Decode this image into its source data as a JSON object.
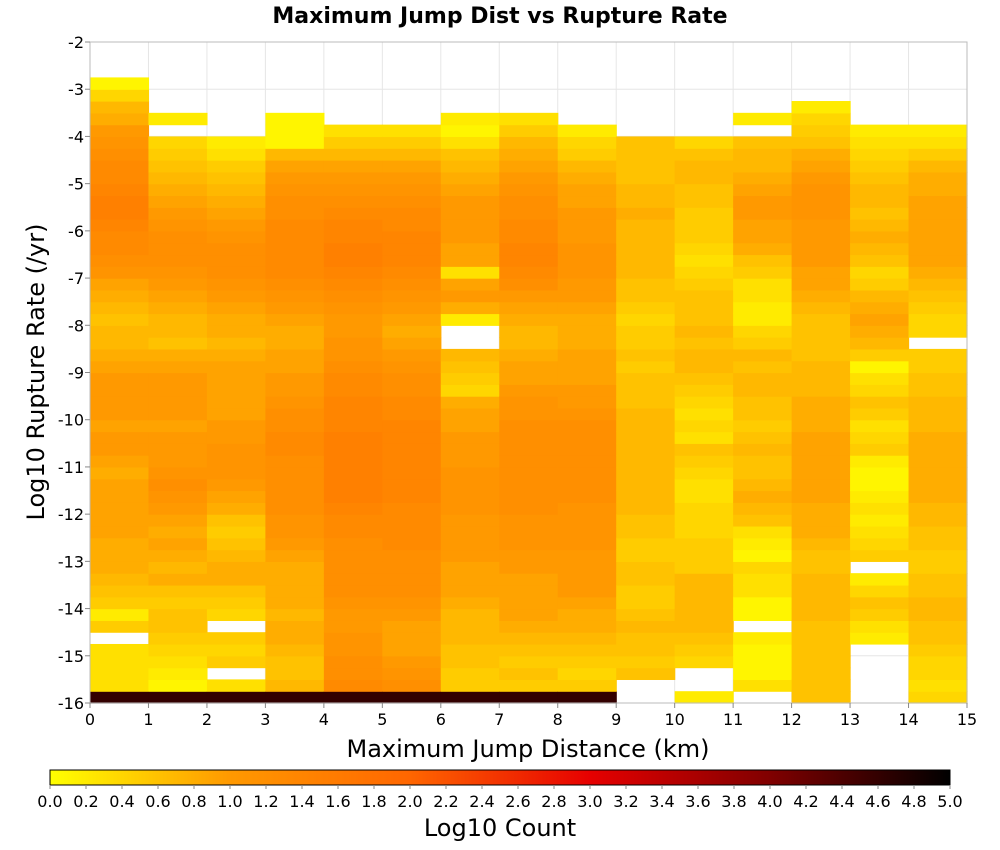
{
  "chart_data": {
    "type": "heatmap",
    "title": "Maximum Jump Dist vs Rupture Rate",
    "xlabel": "Maximum Jump Distance (km)",
    "ylabel": "Log10 Rupture Rate (/yr)",
    "colorbar_label": "Log10 Count",
    "xlim": [
      0,
      15
    ],
    "ylim": [
      -16,
      -2
    ],
    "x_ticks": [
      "0",
      "1",
      "2",
      "3",
      "4",
      "5",
      "6",
      "7",
      "8",
      "9",
      "10",
      "11",
      "12",
      "13",
      "14",
      "15"
    ],
    "y_ticks": [
      "-2",
      "-3",
      "-4",
      "-5",
      "-6",
      "-7",
      "-8",
      "-9",
      "-10",
      "-11",
      "-12",
      "-13",
      "-14",
      "-15",
      "-16"
    ],
    "colorbar_ticks": [
      "0.0",
      "0.2",
      "0.4",
      "0.6",
      "0.8",
      "1.0",
      "1.2",
      "1.4",
      "1.6",
      "1.8",
      "2.0",
      "2.2",
      "2.4",
      "2.6",
      "2.8",
      "3.0",
      "3.2",
      "3.4",
      "3.6",
      "3.8",
      "4.0",
      "4.2",
      "4.4",
      "4.6",
      "4.8",
      "5.0"
    ],
    "color_range": [
      0,
      5
    ],
    "colorscale": [
      "#ffff00",
      "#ff9900",
      "#ff6600",
      "#e60000",
      "#800000",
      "#000000"
    ],
    "x_bin_width": 1,
    "y_bin_height": 0.25,
    "x_bins": [
      0,
      1,
      2,
      3,
      4,
      5,
      6,
      7,
      8,
      9,
      10,
      11,
      12,
      13,
      14
    ],
    "y_bin_bottoms": [
      -16,
      -15.75,
      -15.5,
      -15.25,
      -15,
      -14.75,
      -14.5,
      -14.25,
      -14,
      -13.75,
      -13.5,
      -13.25,
      -13,
      -12.75,
      -12.5,
      -12.25,
      -12,
      -11.75,
      -11.5,
      -11.25,
      -11,
      -10.75,
      -10.5,
      -10.25,
      -10,
      -9.75,
      -9.5,
      -9.25,
      -9,
      -8.75,
      -8.5,
      -8.25,
      -8,
      -7.75,
      -7.5,
      -7.25,
      -7,
      -6.75,
      -6.5,
      -6.25,
      -6,
      -5.75,
      -5.5,
      -5.25,
      -5,
      -4.75,
      -4.5,
      -4.25,
      -4,
      -3.75,
      -3.5,
      -3.25,
      -3
    ],
    "z_note": "columns indexed by x bin, rows by y bin (bottom to top); null = empty",
    "z": [
      [
        4.6,
        0.3,
        0.3,
        0.3,
        0.3,
        null,
        0.5,
        0.2,
        0.5,
        0.6,
        0.7,
        0.8,
        0.8,
        0.8,
        0.9,
        0.9,
        0.9,
        0.9,
        0.9,
        0.8,
        0.9,
        1.0,
        1.0,
        0.9,
        1.0,
        1.0,
        1.0,
        1.0,
        0.9,
        0.8,
        0.7,
        0.7,
        0.6,
        0.7,
        0.8,
        0.9,
        1.1,
        1.2,
        1.3,
        1.3,
        1.4,
        1.5,
        1.5,
        1.4,
        1.3,
        1.3,
        1.2,
        1.1,
        1.0,
        0.8,
        0.7,
        0.4,
        0.1
      ],
      [
        4.6,
        0.1,
        0.2,
        0.3,
        0.4,
        0.5,
        0.6,
        0.6,
        0.5,
        0.6,
        0.8,
        0.7,
        0.8,
        0.9,
        0.8,
        0.9,
        1.0,
        1.1,
        1.2,
        1.1,
        1.0,
        1.0,
        1.0,
        0.9,
        1.0,
        1.0,
        1.0,
        1.0,
        0.9,
        0.8,
        0.6,
        0.7,
        0.7,
        0.8,
        0.9,
        1.0,
        1.1,
        1.2,
        1.2,
        1.2,
        1.1,
        1.0,
        0.9,
        0.8,
        0.7,
        0.6,
        0.5,
        0.4,
        null,
        0.2,
        null,
        null,
        null
      ],
      [
        4.6,
        0.3,
        null,
        0.5,
        0.4,
        0.5,
        null,
        0.4,
        0.5,
        0.6,
        0.8,
        0.8,
        0.7,
        0.6,
        0.5,
        0.6,
        0.8,
        0.9,
        1.0,
        1.1,
        1.1,
        1.1,
        1.0,
        1.0,
        0.9,
        0.9,
        0.9,
        0.9,
        0.9,
        0.8,
        0.7,
        0.8,
        0.8,
        0.9,
        1.0,
        1.1,
        1.2,
        1.2,
        1.2,
        1.1,
        1.0,
        0.9,
        0.8,
        0.7,
        0.6,
        0.5,
        0.3,
        0.2,
        null,
        null,
        null,
        null,
        null
      ],
      [
        4.6,
        0.7,
        0.6,
        0.6,
        0.7,
        0.8,
        0.8,
        0.7,
        0.8,
        0.8,
        0.8,
        0.8,
        0.9,
        1.0,
        1.1,
        1.1,
        1.2,
        1.2,
        1.2,
        1.2,
        1.2,
        1.3,
        1.3,
        1.2,
        1.2,
        1.1,
        1.0,
        1.0,
        0.9,
        0.9,
        0.8,
        0.8,
        0.9,
        1.0,
        1.1,
        1.2,
        1.3,
        1.3,
        1.3,
        1.3,
        1.3,
        1.2,
        1.2,
        1.1,
        1.0,
        0.9,
        0.7,
        0.1,
        0.1,
        0.1,
        null,
        null,
        null
      ],
      [
        4.6,
        1.3,
        1.2,
        1.2,
        1.1,
        1.1,
        1.0,
        1.0,
        1.1,
        1.2,
        1.2,
        1.2,
        1.2,
        1.2,
        1.3,
        1.3,
        1.4,
        1.5,
        1.5,
        1.5,
        1.5,
        1.5,
        1.5,
        1.4,
        1.4,
        1.4,
        1.3,
        1.3,
        1.2,
        1.1,
        1.1,
        1.0,
        1.0,
        1.1,
        1.2,
        1.3,
        1.4,
        1.5,
        1.5,
        1.4,
        1.4,
        1.3,
        1.2,
        1.1,
        1.0,
        0.9,
        0.7,
        0.5,
        0.3,
        null,
        null,
        null,
        null
      ],
      [
        4.6,
        1.2,
        1.1,
        1.0,
        0.9,
        0.9,
        0.9,
        1.0,
        1.1,
        1.2,
        1.2,
        1.2,
        1.2,
        1.3,
        1.3,
        1.3,
        1.3,
        1.4,
        1.4,
        1.4,
        1.4,
        1.4,
        1.4,
        1.4,
        1.3,
        1.3,
        1.2,
        1.2,
        1.1,
        1.0,
        0.9,
        0.8,
        0.9,
        1.0,
        1.1,
        1.2,
        1.3,
        1.4,
        1.4,
        1.4,
        1.3,
        1.3,
        1.2,
        1.1,
        1.0,
        0.9,
        0.7,
        0.5,
        0.3,
        null,
        null,
        null,
        null
      ],
      [
        4.6,
        0.5,
        0.5,
        0.6,
        0.6,
        0.7,
        0.7,
        0.7,
        0.8,
        0.9,
        0.9,
        0.9,
        1.0,
        1.0,
        1.0,
        1.0,
        1.1,
        1.1,
        1.1,
        1.1,
        1.0,
        1.0,
        1.0,
        0.9,
        0.9,
        0.8,
        0.4,
        0.5,
        0.6,
        0.7,
        null,
        null,
        0.2,
        0.8,
        1.0,
        0.9,
        0.3,
        0.9,
        0.9,
        1.0,
        1.0,
        1.0,
        1.0,
        0.9,
        0.8,
        0.7,
        0.6,
        0.3,
        0.1,
        0.2,
        null,
        null,
        null
      ],
      [
        4.6,
        0.5,
        0.6,
        0.5,
        0.6,
        0.7,
        0.8,
        0.9,
        0.9,
        0.9,
        0.9,
        1.0,
        1.0,
        1.1,
        1.1,
        1.1,
        1.2,
        1.2,
        1.2,
        1.2,
        1.2,
        1.2,
        1.2,
        1.2,
        1.1,
        1.1,
        1.0,
        0.9,
        0.9,
        0.8,
        0.7,
        0.7,
        0.8,
        0.9,
        1.0,
        1.2,
        1.3,
        1.4,
        1.4,
        1.3,
        1.3,
        1.2,
        1.2,
        1.1,
        1.0,
        0.9,
        0.8,
        0.7,
        0.5,
        0.3,
        null,
        null,
        null
      ],
      [
        4.6,
        0.5,
        0.4,
        0.5,
        0.6,
        0.7,
        0.8,
        0.8,
        0.9,
        1.0,
        1.0,
        1.0,
        1.0,
        1.1,
        1.1,
        1.1,
        1.1,
        1.2,
        1.2,
        1.2,
        1.2,
        1.2,
        1.2,
        1.2,
        1.1,
        1.0,
        1.0,
        0.9,
        0.9,
        0.9,
        0.8,
        0.8,
        0.8,
        0.9,
        1.0,
        1.0,
        1.1,
        1.1,
        1.1,
        1.0,
        1.0,
        1.0,
        0.9,
        0.9,
        0.8,
        0.7,
        0.5,
        0.4,
        0.2,
        null,
        null,
        null,
        null
      ],
      [
        null,
        null,
        0.6,
        0.5,
        0.6,
        0.6,
        0.7,
        0.6,
        0.5,
        0.5,
        0.6,
        0.6,
        0.5,
        0.5,
        0.6,
        0.6,
        0.7,
        0.7,
        0.7,
        0.7,
        0.7,
        0.7,
        0.7,
        0.7,
        0.7,
        0.6,
        0.6,
        0.6,
        0.5,
        0.6,
        0.5,
        0.5,
        0.4,
        0.5,
        0.6,
        0.6,
        0.7,
        0.7,
        0.7,
        0.7,
        0.7,
        0.8,
        0.7,
        0.7,
        0.6,
        0.6,
        0.6,
        0.6,
        null,
        null,
        null,
        null,
        null
      ],
      [
        0.2,
        null,
        null,
        0.4,
        0.5,
        0.6,
        0.7,
        0.7,
        0.7,
        0.7,
        0.7,
        0.5,
        0.5,
        0.5,
        0.4,
        0.4,
        0.4,
        0.3,
        0.3,
        0.4,
        0.5,
        0.6,
        0.3,
        0.4,
        0.3,
        0.4,
        0.5,
        0.6,
        0.7,
        0.7,
        0.6,
        0.7,
        0.6,
        0.6,
        0.6,
        0.5,
        0.4,
        0.3,
        0.4,
        0.5,
        0.5,
        0.5,
        0.6,
        0.6,
        0.7,
        0.7,
        0.6,
        0.4,
        null,
        null,
        null,
        null,
        null
      ],
      [
        null,
        0.3,
        0.1,
        0.1,
        0.1,
        0.2,
        null,
        0.1,
        0.1,
        0.3,
        0.3,
        0.4,
        0.1,
        0.2,
        0.3,
        0.6,
        0.7,
        0.8,
        0.7,
        0.6,
        0.6,
        0.7,
        0.6,
        0.5,
        0.6,
        0.6,
        0.7,
        0.7,
        0.6,
        0.7,
        0.5,
        0.4,
        0.2,
        0.2,
        0.3,
        0.3,
        0.5,
        0.6,
        0.8,
        0.9,
        0.9,
        1.0,
        1.0,
        0.9,
        0.8,
        0.7,
        0.7,
        0.6,
        null,
        0.2,
        null,
        null,
        null
      ],
      [
        0.6,
        0.6,
        0.6,
        0.6,
        0.6,
        0.6,
        0.6,
        0.7,
        0.7,
        0.7,
        0.7,
        0.6,
        0.6,
        0.7,
        0.8,
        0.8,
        0.8,
        0.9,
        0.9,
        0.9,
        0.9,
        0.9,
        0.9,
        0.8,
        0.8,
        0.8,
        0.7,
        0.7,
        0.7,
        0.6,
        0.6,
        0.6,
        0.6,
        0.7,
        0.8,
        0.9,
        0.9,
        1.0,
        1.0,
        1.0,
        1.0,
        1.1,
        1.1,
        1.1,
        1.0,
        0.9,
        0.8,
        0.6,
        0.5,
        0.4,
        0.2,
        null,
        null
      ],
      [
        null,
        null,
        null,
        null,
        null,
        0.2,
        0.3,
        0.5,
        0.6,
        0.4,
        0.2,
        null,
        0.5,
        0.4,
        0.3,
        0.2,
        0.3,
        0.2,
        0.1,
        0.1,
        0.2,
        0.5,
        0.4,
        0.3,
        0.5,
        0.6,
        0.4,
        0.3,
        0.1,
        0.5,
        0.7,
        0.8,
        0.9,
        0.8,
        0.7,
        0.5,
        0.4,
        0.6,
        0.7,
        0.8,
        0.7,
        0.6,
        0.7,
        0.7,
        0.6,
        0.5,
        0.4,
        0.3,
        0.2,
        null,
        null,
        null,
        null
      ],
      [
        0.4,
        0.3,
        0.4,
        0.4,
        0.5,
        0.6,
        0.6,
        0.7,
        0.7,
        0.6,
        0.6,
        0.5,
        0.5,
        0.6,
        0.6,
        0.7,
        0.7,
        0.8,
        0.8,
        0.8,
        0.8,
        0.8,
        0.8,
        0.7,
        0.7,
        0.7,
        0.6,
        0.6,
        0.5,
        0.5,
        null,
        0.4,
        0.4,
        0.5,
        0.6,
        0.7,
        0.8,
        0.9,
        0.9,
        0.9,
        0.9,
        0.9,
        0.9,
        0.8,
        0.8,
        0.7,
        0.5,
        0.3,
        0.2,
        null,
        null,
        null,
        null
      ]
    ]
  }
}
